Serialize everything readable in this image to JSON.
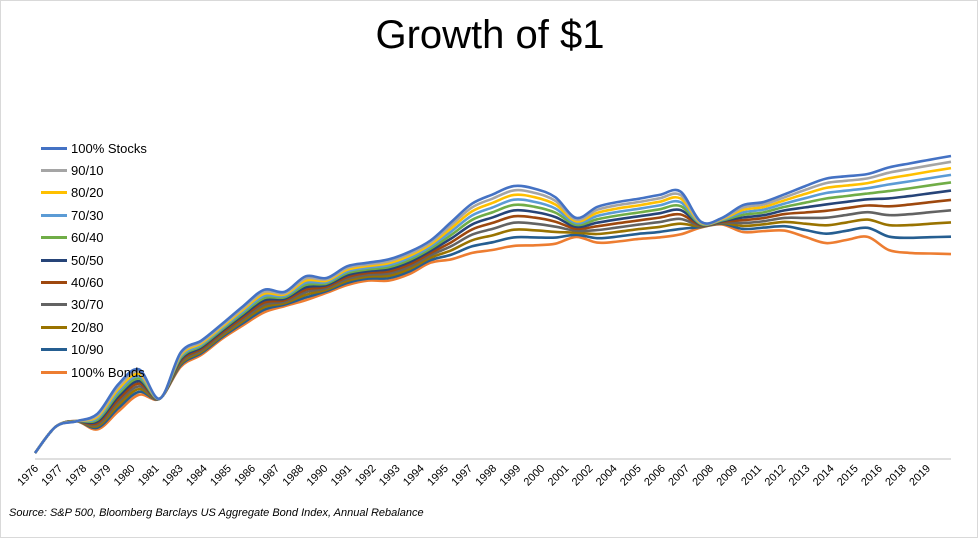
{
  "chart_data": {
    "type": "line",
    "title": "Growth of $1",
    "xlabel": "",
    "ylabel": "",
    "y_axis_shown": false,
    "grid": false,
    "legend_position": "left",
    "x_tick_labels": [
      "1976",
      "1977",
      "1978",
      "1979",
      "1980",
      "1981",
      "1983",
      "1984",
      "1985",
      "1986",
      "1987",
      "1988",
      "1990",
      "1991",
      "1992",
      "1993",
      "1994",
      "1995",
      "1997",
      "1998",
      "1999",
      "2000",
      "2001",
      "2002",
      "2004",
      "2005",
      "2006",
      "2007",
      "2008",
      "2009",
      "2011",
      "2012",
      "2013",
      "2014",
      "2015",
      "2016",
      "2018",
      "2019"
    ],
    "x": [
      1976,
      1977,
      1978,
      1979,
      1980,
      1981,
      1982,
      1983,
      1984,
      1985,
      1986,
      1987,
      1988,
      1989,
      1990,
      1991,
      1992,
      1993,
      1994,
      1995,
      1996,
      1997,
      1998,
      1999,
      2000,
      2001,
      2002,
      2003,
      2004,
      2005,
      2006,
      2007,
      2008,
      2009,
      2010,
      2011,
      2012,
      2013,
      2014,
      2015,
      2016,
      2017,
      2018,
      2019,
      2020
    ],
    "series": [
      {
        "name": "100% Stocks",
        "color": "#4472C4",
        "values": [
          1.0,
          1.4,
          1.5,
          1.65,
          2.4,
          2.9,
          2.0,
          3.6,
          4.2,
          5.2,
          6.5,
          8.0,
          7.8,
          9.5,
          9.3,
          10.8,
          11.3,
          11.8,
          13.0,
          15.0,
          19.0,
          24.0,
          27.0,
          30.0,
          29.0,
          26.0,
          20.0,
          23.0,
          24.5,
          25.5,
          26.8,
          28.0,
          19.0,
          20.0,
          23.5,
          24.5,
          27.0,
          30.0,
          33.0,
          34.0,
          35.0,
          38.0,
          40.0,
          42.0,
          44.0
        ]
      },
      {
        "name": "90/10",
        "color": "#A5A5A5",
        "values": [
          1.0,
          1.4,
          1.5,
          1.62,
          2.33,
          2.82,
          2.0,
          3.54,
          4.13,
          5.11,
          6.36,
          7.8,
          7.67,
          9.25,
          9.14,
          10.57,
          11.07,
          11.52,
          12.68,
          14.63,
          18.28,
          22.88,
          25.63,
          28.4,
          27.51,
          24.84,
          19.57,
          22.16,
          23.53,
          24.48,
          25.68,
          26.82,
          18.87,
          19.84,
          22.82,
          23.74,
          26.0,
          28.57,
          31.15,
          32.11,
          33.07,
          35.53,
          37.28,
          39.07,
          40.86
        ]
      },
      {
        "name": "80/20",
        "color": "#FFC000",
        "values": [
          1.0,
          1.4,
          1.5,
          1.59,
          2.26,
          2.74,
          2.0,
          3.48,
          4.06,
          5.02,
          6.22,
          7.6,
          7.54,
          9.0,
          8.98,
          10.34,
          10.84,
          11.24,
          12.36,
          14.26,
          17.56,
          21.76,
          24.26,
          26.8,
          26.02,
          23.68,
          19.14,
          21.32,
          22.56,
          23.46,
          24.56,
          25.64,
          18.74,
          19.68,
          22.14,
          22.98,
          25.0,
          27.14,
          29.3,
          30.22,
          31.14,
          33.06,
          34.56,
          36.14,
          37.72
        ]
      },
      {
        "name": "70/30",
        "color": "#5B9BD5",
        "values": [
          1.0,
          1.4,
          1.5,
          1.56,
          2.19,
          2.66,
          2.0,
          3.42,
          3.99,
          4.93,
          6.08,
          7.4,
          7.41,
          8.75,
          8.82,
          10.11,
          10.61,
          10.96,
          12.04,
          13.89,
          16.84,
          20.64,
          22.89,
          25.2,
          24.53,
          22.52,
          18.71,
          20.48,
          21.59,
          22.44,
          23.44,
          24.46,
          18.61,
          19.52,
          21.46,
          22.22,
          24.0,
          25.71,
          27.45,
          28.33,
          29.21,
          30.59,
          31.84,
          33.21,
          34.58
        ]
      },
      {
        "name": "60/40",
        "color": "#70AD47",
        "values": [
          1.0,
          1.4,
          1.5,
          1.53,
          2.12,
          2.58,
          2.0,
          3.36,
          3.92,
          4.84,
          5.94,
          7.2,
          7.28,
          8.5,
          8.66,
          9.88,
          10.38,
          10.68,
          11.72,
          13.52,
          16.12,
          19.52,
          21.52,
          23.6,
          23.04,
          21.36,
          18.28,
          19.64,
          20.62,
          21.42,
          22.32,
          23.28,
          18.48,
          19.36,
          20.78,
          21.46,
          23.0,
          24.28,
          25.6,
          26.44,
          27.28,
          28.12,
          29.12,
          30.28,
          31.44
        ]
      },
      {
        "name": "50/50",
        "color": "#264478",
        "values": [
          1.0,
          1.4,
          1.5,
          1.5,
          2.05,
          2.5,
          2.0,
          3.3,
          3.85,
          4.75,
          5.8,
          7.0,
          7.15,
          8.25,
          8.5,
          9.65,
          10.15,
          10.4,
          11.4,
          13.15,
          15.4,
          18.4,
          20.15,
          22.0,
          21.55,
          20.2,
          17.85,
          18.8,
          19.65,
          20.4,
          21.2,
          22.1,
          18.35,
          19.2,
          20.1,
          20.7,
          22.0,
          22.85,
          23.75,
          24.55,
          25.35,
          25.65,
          26.4,
          27.35,
          28.3
        ]
      },
      {
        "name": "40/60",
        "color": "#9E480E",
        "values": [
          1.0,
          1.4,
          1.5,
          1.47,
          1.98,
          2.42,
          2.0,
          3.24,
          3.78,
          4.66,
          5.66,
          6.8,
          7.02,
          8.0,
          8.34,
          9.42,
          9.92,
          10.12,
          11.08,
          12.78,
          14.68,
          17.28,
          18.78,
          20.4,
          20.06,
          19.04,
          17.42,
          17.96,
          18.68,
          19.38,
          20.08,
          20.92,
          18.22,
          19.04,
          19.42,
          19.94,
          21.0,
          21.42,
          21.9,
          22.66,
          23.42,
          23.18,
          23.68,
          24.42,
          25.16
        ]
      },
      {
        "name": "30/70",
        "color": "#636363",
        "values": [
          1.0,
          1.4,
          1.5,
          1.44,
          1.91,
          2.34,
          2.0,
          3.18,
          3.71,
          4.57,
          5.52,
          6.6,
          6.89,
          7.75,
          8.18,
          9.19,
          9.69,
          9.84,
          10.76,
          12.41,
          13.96,
          16.16,
          17.41,
          18.8,
          18.57,
          17.88,
          16.99,
          17.12,
          17.71,
          18.36,
          18.96,
          19.74,
          18.09,
          18.88,
          18.74,
          19.18,
          20.0,
          19.99,
          20.05,
          20.77,
          21.49,
          20.71,
          20.96,
          21.49,
          22.02
        ]
      },
      {
        "name": "20/80",
        "color": "#997300",
        "values": [
          1.0,
          1.4,
          1.5,
          1.41,
          1.84,
          2.26,
          2.0,
          3.12,
          3.64,
          4.48,
          5.38,
          6.4,
          6.76,
          7.5,
          8.02,
          8.96,
          9.46,
          9.56,
          10.44,
          12.04,
          13.24,
          15.04,
          16.04,
          17.2,
          17.08,
          16.72,
          16.56,
          16.28,
          16.74,
          17.34,
          17.84,
          18.56,
          17.96,
          18.72,
          18.06,
          18.42,
          19.0,
          18.56,
          18.2,
          18.88,
          19.56,
          18.24,
          18.24,
          18.56,
          18.88
        ]
      },
      {
        "name": "10/90",
        "color": "#255E91",
        "values": [
          1.0,
          1.4,
          1.5,
          1.38,
          1.77,
          2.18,
          2.0,
          3.06,
          3.57,
          4.39,
          5.24,
          6.2,
          6.63,
          7.25,
          7.86,
          8.73,
          9.23,
          9.28,
          10.12,
          11.67,
          12.52,
          13.92,
          14.67,
          15.6,
          15.59,
          15.56,
          16.13,
          15.44,
          15.77,
          16.32,
          16.72,
          17.38,
          17.83,
          18.56,
          17.38,
          17.66,
          18.0,
          17.13,
          16.35,
          16.99,
          17.63,
          15.77,
          15.52,
          15.63,
          15.74
        ]
      },
      {
        "name": "100% Bonds",
        "color": "#ED7D31",
        "values": [
          1.0,
          1.4,
          1.5,
          1.35,
          1.7,
          2.1,
          2.0,
          3.0,
          3.5,
          4.3,
          5.1,
          6.0,
          6.5,
          7.0,
          7.7,
          8.5,
          9.0,
          9.0,
          9.8,
          11.3,
          11.8,
          12.8,
          13.3,
          14.0,
          14.1,
          14.4,
          15.7,
          14.6,
          14.8,
          15.3,
          15.6,
          16.2,
          17.7,
          18.4,
          16.7,
          16.9,
          17.0,
          15.7,
          14.5,
          15.1,
          15.7,
          13.3,
          12.8,
          12.7,
          12.6
        ]
      }
    ]
  },
  "source_note": "Source: S&P 500, Bloomberg Barclays US Aggregate Bond Index, Annual Rebalance"
}
